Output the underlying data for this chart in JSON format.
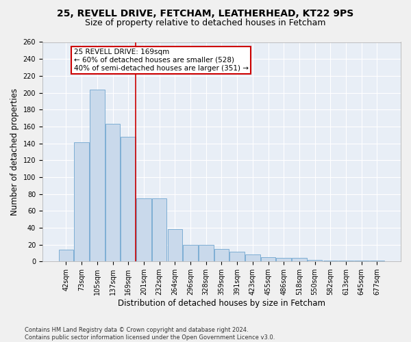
{
  "title_line1": "25, REVELL DRIVE, FETCHAM, LEATHERHEAD, KT22 9PS",
  "title_line2": "Size of property relative to detached houses in Fetcham",
  "xlabel": "Distribution of detached houses by size in Fetcham",
  "ylabel": "Number of detached properties",
  "footnote": "Contains HM Land Registry data © Crown copyright and database right 2024.\nContains public sector information licensed under the Open Government Licence v3.0.",
  "bar_labels": [
    "42sqm",
    "73sqm",
    "105sqm",
    "137sqm",
    "169sqm",
    "201sqm",
    "232sqm",
    "264sqm",
    "296sqm",
    "328sqm",
    "359sqm",
    "391sqm",
    "423sqm",
    "455sqm",
    "486sqm",
    "518sqm",
    "550sqm",
    "582sqm",
    "613sqm",
    "645sqm",
    "677sqm"
  ],
  "bar_values": [
    14,
    141,
    204,
    163,
    148,
    75,
    75,
    38,
    20,
    20,
    15,
    12,
    8,
    5,
    4,
    4,
    2,
    1,
    1,
    1,
    1
  ],
  "bar_color": "#c9d9eb",
  "bar_edge_color": "#7eaed4",
  "property_line_color": "#cc0000",
  "annotation_text": "25 REVELL DRIVE: 169sqm\n← 60% of detached houses are smaller (528)\n40% of semi-detached houses are larger (351) →",
  "annotation_box_color": "#ffffff",
  "annotation_box_edge_color": "#cc0000",
  "ylim": [
    0,
    260
  ],
  "yticks": [
    0,
    20,
    40,
    60,
    80,
    100,
    120,
    140,
    160,
    180,
    200,
    220,
    240,
    260
  ],
  "background_color": "#e8eef6",
  "grid_color": "#ffffff",
  "title_fontsize": 10,
  "subtitle_fontsize": 9,
  "axis_label_fontsize": 8.5,
  "tick_fontsize": 7,
  "annotation_fontsize": 7.5,
  "footnote_fontsize": 6
}
